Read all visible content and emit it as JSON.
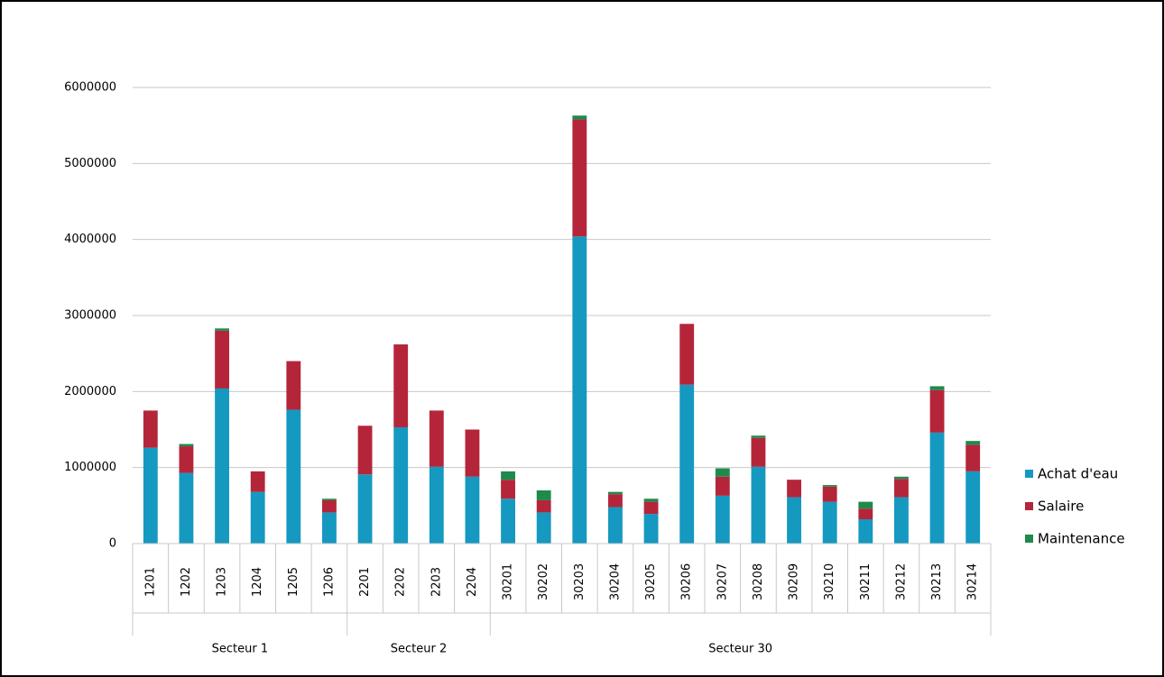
{
  "chart_data": {
    "type": "stacked_bar",
    "groups": [
      {
        "label": "Secteur 1",
        "categories": [
          "1201",
          "1202",
          "1203",
          "1204",
          "1205",
          "1206"
        ]
      },
      {
        "label": "Secteur 2",
        "categories": [
          "2201",
          "2202",
          "2203",
          "2204"
        ]
      },
      {
        "label": "Secteur 30",
        "categories": [
          "30201",
          "30202",
          "30203",
          "30204",
          "30205",
          "30206",
          "30207",
          "30208",
          "30209",
          "30210",
          "30211",
          "30212",
          "30213",
          "30214"
        ]
      }
    ],
    "series": [
      {
        "name": "Achat d'eau",
        "color": "#1599c0",
        "values": [
          1260000,
          930000,
          2040000,
          680000,
          1760000,
          410000,
          910000,
          1530000,
          1010000,
          880000,
          590000,
          410000,
          4040000,
          480000,
          390000,
          2090000,
          630000,
          1010000,
          610000,
          550000,
          320000,
          610000,
          1460000,
          950000
        ]
      },
      {
        "name": "Salaire",
        "color": "#b5253a",
        "values": [
          490000,
          350000,
          760000,
          270000,
          640000,
          160000,
          640000,
          1090000,
          740000,
          620000,
          250000,
          160000,
          1540000,
          170000,
          160000,
          800000,
          250000,
          380000,
          230000,
          200000,
          140000,
          240000,
          560000,
          350000
        ]
      },
      {
        "name": "Maintenance",
        "color": "#1f8a4c",
        "values": [
          0,
          30000,
          30000,
          0,
          0,
          20000,
          0,
          0,
          0,
          0,
          110000,
          130000,
          50000,
          30000,
          40000,
          0,
          110000,
          30000,
          0,
          20000,
          90000,
          30000,
          50000,
          50000
        ]
      }
    ],
    "ylim": [
      0,
      6000000
    ],
    "yticks": [
      0,
      1000000,
      2000000,
      3000000,
      4000000,
      5000000,
      6000000
    ],
    "grid": true,
    "legend": "right"
  }
}
